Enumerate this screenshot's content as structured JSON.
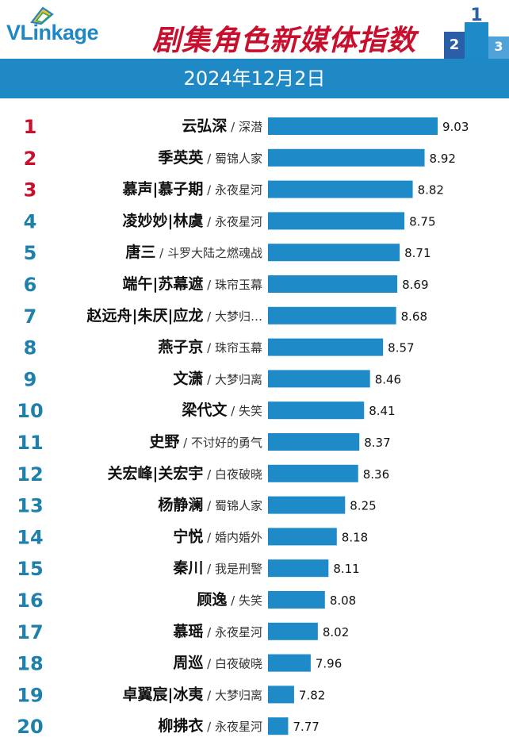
{
  "header": {
    "logo_text_v": "V",
    "logo_text_link": "Link",
    "logo_text_age": "age",
    "title": "剧集角色新媒体指数",
    "date": "2024年12月2日"
  },
  "colors": {
    "bar": "#1e8ac8",
    "band": "#1f89c6",
    "rank_top3": "#c8102e",
    "rank_other": "#1f80ab",
    "title": "#c8102e"
  },
  "chart_data": {
    "type": "bar",
    "orientation": "horizontal",
    "title": "剧集角色新媒体指数",
    "subtitle": "2024年12月2日",
    "rows": [
      {
        "rank": "1",
        "role": "云弘深",
        "drama": "深潜",
        "value": 9.03
      },
      {
        "rank": "2",
        "role": "季英英",
        "drama": "蜀锦人家",
        "value": 8.92
      },
      {
        "rank": "3",
        "role": "慕声|慕子期",
        "drama": "永夜星河",
        "value": 8.82
      },
      {
        "rank": "4",
        "role": "凌妙妙|林虞",
        "drama": "永夜星河",
        "value": 8.75
      },
      {
        "rank": "5",
        "role": "唐三",
        "drama": "斗罗大陆之燃魂战",
        "value": 8.71
      },
      {
        "rank": "6",
        "role": "端午|苏幕遮",
        "drama": "珠帘玉幕",
        "value": 8.69
      },
      {
        "rank": "7",
        "role": "赵远舟|朱厌|应龙",
        "drama": "大梦归…",
        "value": 8.68
      },
      {
        "rank": "8",
        "role": "燕子京",
        "drama": "珠帘玉幕",
        "value": 8.57
      },
      {
        "rank": "9",
        "role": "文潇",
        "drama": "大梦归离",
        "value": 8.46
      },
      {
        "rank": "10",
        "role": "梁代文",
        "drama": "失笑",
        "value": 8.41
      },
      {
        "rank": "11",
        "role": "史野",
        "drama": "不讨好的勇气",
        "value": 8.37
      },
      {
        "rank": "12",
        "role": "关宏峰|关宏宇",
        "drama": "白夜破晓",
        "value": 8.36
      },
      {
        "rank": "13",
        "role": "杨静澜",
        "drama": "蜀锦人家",
        "value": 8.25
      },
      {
        "rank": "14",
        "role": "宁悦",
        "drama": "婚内婚外",
        "value": 8.18
      },
      {
        "rank": "15",
        "role": "秦川",
        "drama": "我是刑警",
        "value": 8.11
      },
      {
        "rank": "16",
        "role": "顾逸",
        "drama": "失笑",
        "value": 8.08
      },
      {
        "rank": "17",
        "role": "慕瑶",
        "drama": "永夜星河",
        "value": 8.02
      },
      {
        "rank": "18",
        "role": "周巡",
        "drama": "白夜破晓",
        "value": 7.96
      },
      {
        "rank": "19",
        "role": "卓翼宸|冰夷",
        "drama": "大梦归离",
        "value": 7.82
      },
      {
        "rank": "20",
        "role": "柳拂衣",
        "drama": "永夜星河",
        "value": 7.77
      }
    ],
    "value_labels": [
      "9.03",
      "8.92",
      "8.82",
      "8.75",
      "8.71",
      "8.69",
      "8.68",
      "8.57",
      "8.46",
      "8.41",
      "8.37",
      "8.36",
      "8.25",
      "8.18",
      "8.11",
      "8.08",
      "8.02",
      "7.96",
      "7.82",
      "7.77"
    ],
    "xlim": [
      7.6,
      9.03
    ]
  }
}
